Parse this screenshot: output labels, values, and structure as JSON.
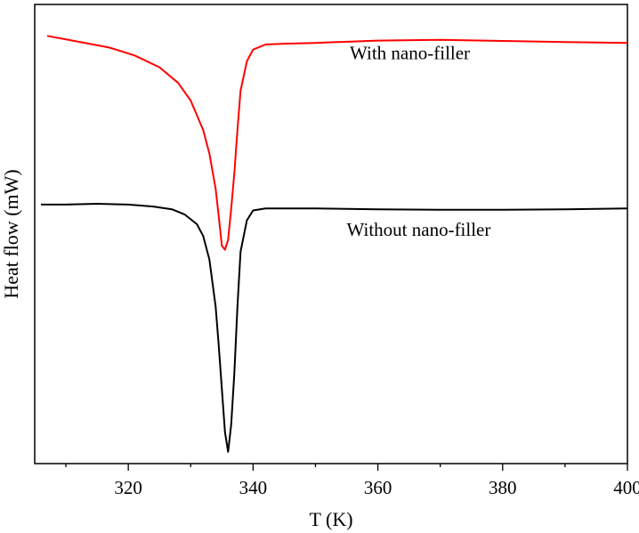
{
  "chart_data": {
    "type": "line",
    "xlabel": "T (K)",
    "ylabel": "Heat flow (mW)",
    "xlim": [
      305,
      400
    ],
    "ylim": [
      -10.6,
      1.1
    ],
    "x_ticks": [
      320,
      340,
      360,
      380,
      400
    ],
    "y_ticks": [],
    "grid": false,
    "series": [
      {
        "name": "With nano-filler",
        "color": "#ff0000",
        "x": [
          307,
          312,
          317,
          321,
          325,
          328,
          330,
          332,
          333,
          334,
          334.5,
          335,
          335.5,
          336,
          336.5,
          337,
          337.5,
          338,
          339,
          340,
          342,
          345,
          350,
          360,
          370,
          380,
          390,
          400
        ],
        "y": [
          0.3,
          0.15,
          0.0,
          -0.2,
          -0.5,
          -0.9,
          -1.35,
          -2.1,
          -2.7,
          -3.6,
          -4.3,
          -5.05,
          -5.15,
          -4.9,
          -4.1,
          -3.2,
          -2.1,
          -1.1,
          -0.35,
          -0.05,
          0.08,
          0.1,
          0.12,
          0.18,
          0.2,
          0.17,
          0.14,
          0.12
        ]
      },
      {
        "name": "Without nano-filler",
        "color": "#000000",
        "x": [
          306,
          310,
          315,
          320,
          324,
          327,
          329,
          331,
          332,
          333,
          334,
          334.5,
          335,
          335.5,
          336,
          336.5,
          337,
          337.5,
          338,
          339,
          340,
          342,
          345,
          350,
          360,
          370,
          380,
          390,
          400
        ],
        "y": [
          -4.0,
          -4.0,
          -3.98,
          -4.0,
          -4.05,
          -4.12,
          -4.25,
          -4.5,
          -4.8,
          -5.4,
          -6.6,
          -7.6,
          -8.7,
          -9.8,
          -10.3,
          -9.6,
          -8.3,
          -6.6,
          -5.2,
          -4.4,
          -4.15,
          -4.1,
          -4.1,
          -4.1,
          -4.12,
          -4.13,
          -4.13,
          -4.12,
          -4.1
        ]
      }
    ],
    "annotations": [
      {
        "text": "With nano-filler",
        "x": 355.5,
        "y": -0.3
      },
      {
        "text": "Without nano-filler",
        "x": 355,
        "y": -4.8
      }
    ]
  }
}
